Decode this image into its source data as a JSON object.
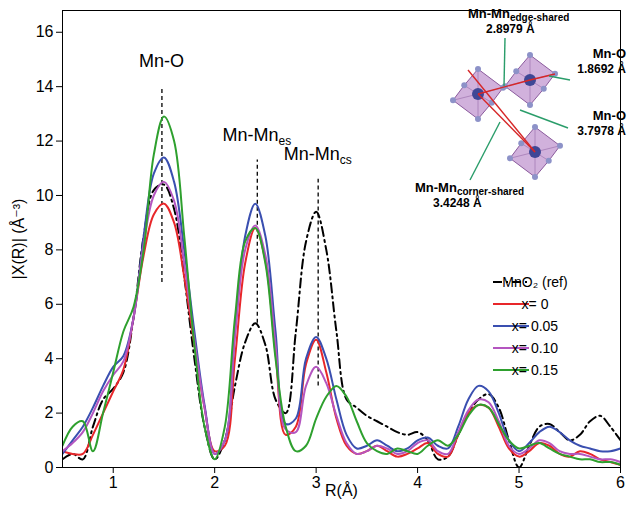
{
  "chart_data": {
    "type": "line",
    "x_label": "R(Å)",
    "y_label": "|X(R)| (Å⁻³)",
    "xlim": [
      0.5,
      6
    ],
    "ylim": [
      0,
      16.8
    ],
    "xticks": [
      1,
      2,
      3,
      4,
      5,
      6
    ],
    "yticks": [
      0,
      2,
      4,
      6,
      8,
      10,
      12,
      14,
      16
    ],
    "legend": "right",
    "x": [
      0.5,
      0.6,
      0.7,
      0.8,
      0.9,
      1.0,
      1.1,
      1.2,
      1.3,
      1.4,
      1.5,
      1.6,
      1.7,
      1.8,
      1.9,
      2.0,
      2.1,
      2.2,
      2.3,
      2.4,
      2.5,
      2.6,
      2.7,
      2.8,
      2.9,
      3.0,
      3.1,
      3.2,
      3.3,
      3.4,
      3.5,
      3.6,
      3.7,
      3.8,
      3.9,
      4.0,
      4.1,
      4.2,
      4.3,
      4.4,
      4.5,
      4.6,
      4.7,
      4.8,
      4.9,
      5.0,
      5.1,
      5.2,
      5.3,
      5.4,
      5.5,
      5.6,
      5.7,
      5.8,
      5.9,
      6.0
    ],
    "series": [
      {
        "name": "MnO₂ (ref)",
        "color": "#000000",
        "line_style": "dashdot",
        "values": [
          0.3,
          0.5,
          0.3,
          1.5,
          2.5,
          2.9,
          3.5,
          5.5,
          8.5,
          10.2,
          10.4,
          9.5,
          7.0,
          4.0,
          1.5,
          0.3,
          1.0,
          3.0,
          4.6,
          5.3,
          4.5,
          2.5,
          2.0,
          5.0,
          8.3,
          9.4,
          8.0,
          5.0,
          2.5,
          2.2,
          1.9,
          1.7,
          1.5,
          1.3,
          1.2,
          1.3,
          1.0,
          0.3,
          0.4,
          1.2,
          2.0,
          2.5,
          2.7,
          2.2,
          1.0,
          0.0,
          0.8,
          1.5,
          1.6,
          1.3,
          1.0,
          1.2,
          1.7,
          1.9,
          1.5,
          1.0
        ]
      },
      {
        "name": "x= 0",
        "color": "#e8262a",
        "line_style": "solid",
        "values": [
          0.6,
          0.5,
          0.5,
          1.2,
          2.0,
          2.8,
          3.6,
          5.5,
          7.8,
          9.3,
          9.7,
          9.0,
          7.0,
          4.5,
          2.2,
          0.6,
          0.8,
          4.0,
          7.5,
          8.8,
          7.6,
          4.2,
          1.2,
          1.5,
          3.8,
          4.7,
          3.5,
          1.8,
          0.8,
          0.5,
          0.6,
          0.8,
          0.6,
          0.4,
          0.5,
          0.7,
          0.9,
          0.5,
          0.4,
          1.2,
          2.0,
          2.3,
          2.2,
          1.5,
          0.7,
          0.4,
          0.6,
          0.9,
          0.8,
          0.5,
          0.4,
          0.6,
          0.5,
          0.3,
          0.2,
          0.1
        ]
      },
      {
        "name": "x= 0.05",
        "color": "#3a4fb0",
        "line_style": "solid",
        "values": [
          0.5,
          1.0,
          1.5,
          2.2,
          3.0,
          3.7,
          4.1,
          5.5,
          8.5,
          10.8,
          11.4,
          10.5,
          8.0,
          5.0,
          2.3,
          0.5,
          1.0,
          5.0,
          8.5,
          9.7,
          8.5,
          5.0,
          1.6,
          1.8,
          4.0,
          4.8,
          4.0,
          2.5,
          1.2,
          0.7,
          0.8,
          1.0,
          0.8,
          0.6,
          0.7,
          1.0,
          1.1,
          0.8,
          0.7,
          1.5,
          2.5,
          3.0,
          2.8,
          2.0,
          1.0,
          0.6,
          0.9,
          1.3,
          1.5,
          1.3,
          1.0,
          0.8,
          0.7,
          0.6,
          0.6,
          0.7
        ]
      },
      {
        "name": "x= 0.10",
        "color": "#b455c0",
        "line_style": "solid",
        "values": [
          0.6,
          0.9,
          1.3,
          2.0,
          2.8,
          3.4,
          3.9,
          5.5,
          8.2,
          10.0,
          10.5,
          9.8,
          7.5,
          4.7,
          2.2,
          0.5,
          1.0,
          4.8,
          8.0,
          8.9,
          7.8,
          4.5,
          1.4,
          1.3,
          3.0,
          3.7,
          3.1,
          1.9,
          0.9,
          0.5,
          0.6,
          0.8,
          0.7,
          0.5,
          0.6,
          0.9,
          1.0,
          0.6,
          0.5,
          1.3,
          2.1,
          2.5,
          2.4,
          1.7,
          0.8,
          0.5,
          0.7,
          1.0,
          0.9,
          0.6,
          0.5,
          0.5,
          0.4,
          0.3,
          0.3,
          0.2
        ]
      },
      {
        "name": "x= 0.15",
        "color": "#2ea02e",
        "line_style": "solid",
        "values": [
          0.8,
          1.5,
          1.7,
          0.6,
          2.0,
          3.5,
          5.0,
          5.9,
          8.0,
          11.5,
          12.9,
          12.0,
          8.5,
          4.5,
          1.5,
          0.3,
          1.5,
          5.5,
          8.3,
          8.8,
          7.5,
          4.0,
          1.5,
          0.6,
          0.8,
          1.8,
          2.6,
          3.0,
          2.6,
          1.7,
          0.9,
          0.6,
          0.5,
          0.7,
          0.6,
          0.5,
          0.8,
          1.0,
          0.8,
          1.2,
          1.9,
          2.3,
          2.2,
          1.6,
          1.0,
          0.7,
          0.8,
          0.9,
          0.7,
          0.5,
          0.4,
          0.3,
          0.3,
          0.2,
          0.2,
          0.1
        ]
      }
    ],
    "annotations": [
      {
        "text": "Mn-O",
        "x": 1.48,
        "y": 14.7,
        "y1": 6.8,
        "y2": 14.0
      },
      {
        "text": "Mn-Mn",
        "subscript": "es",
        "x": 2.42,
        "y": 12.0,
        "y1": 5.3,
        "y2": 11.3
      },
      {
        "text": "Mn-Mn",
        "subscript": "cs",
        "x": 3.02,
        "y": 11.3,
        "y1": 3.0,
        "y2": 10.6
      }
    ],
    "inset": {
      "labels": [
        {
          "text": "Mn-Mn",
          "subscript": "edge-shared",
          "distance": "2.8979 Å"
        },
        {
          "text": "Mn-O",
          "distance": "1.8692 Å"
        },
        {
          "text": "Mn-O",
          "distance": "3.7978 Å"
        },
        {
          "text": "Mn-Mn",
          "subscript": "corner-shared",
          "distance": "3.4248 Å"
        }
      ]
    }
  }
}
